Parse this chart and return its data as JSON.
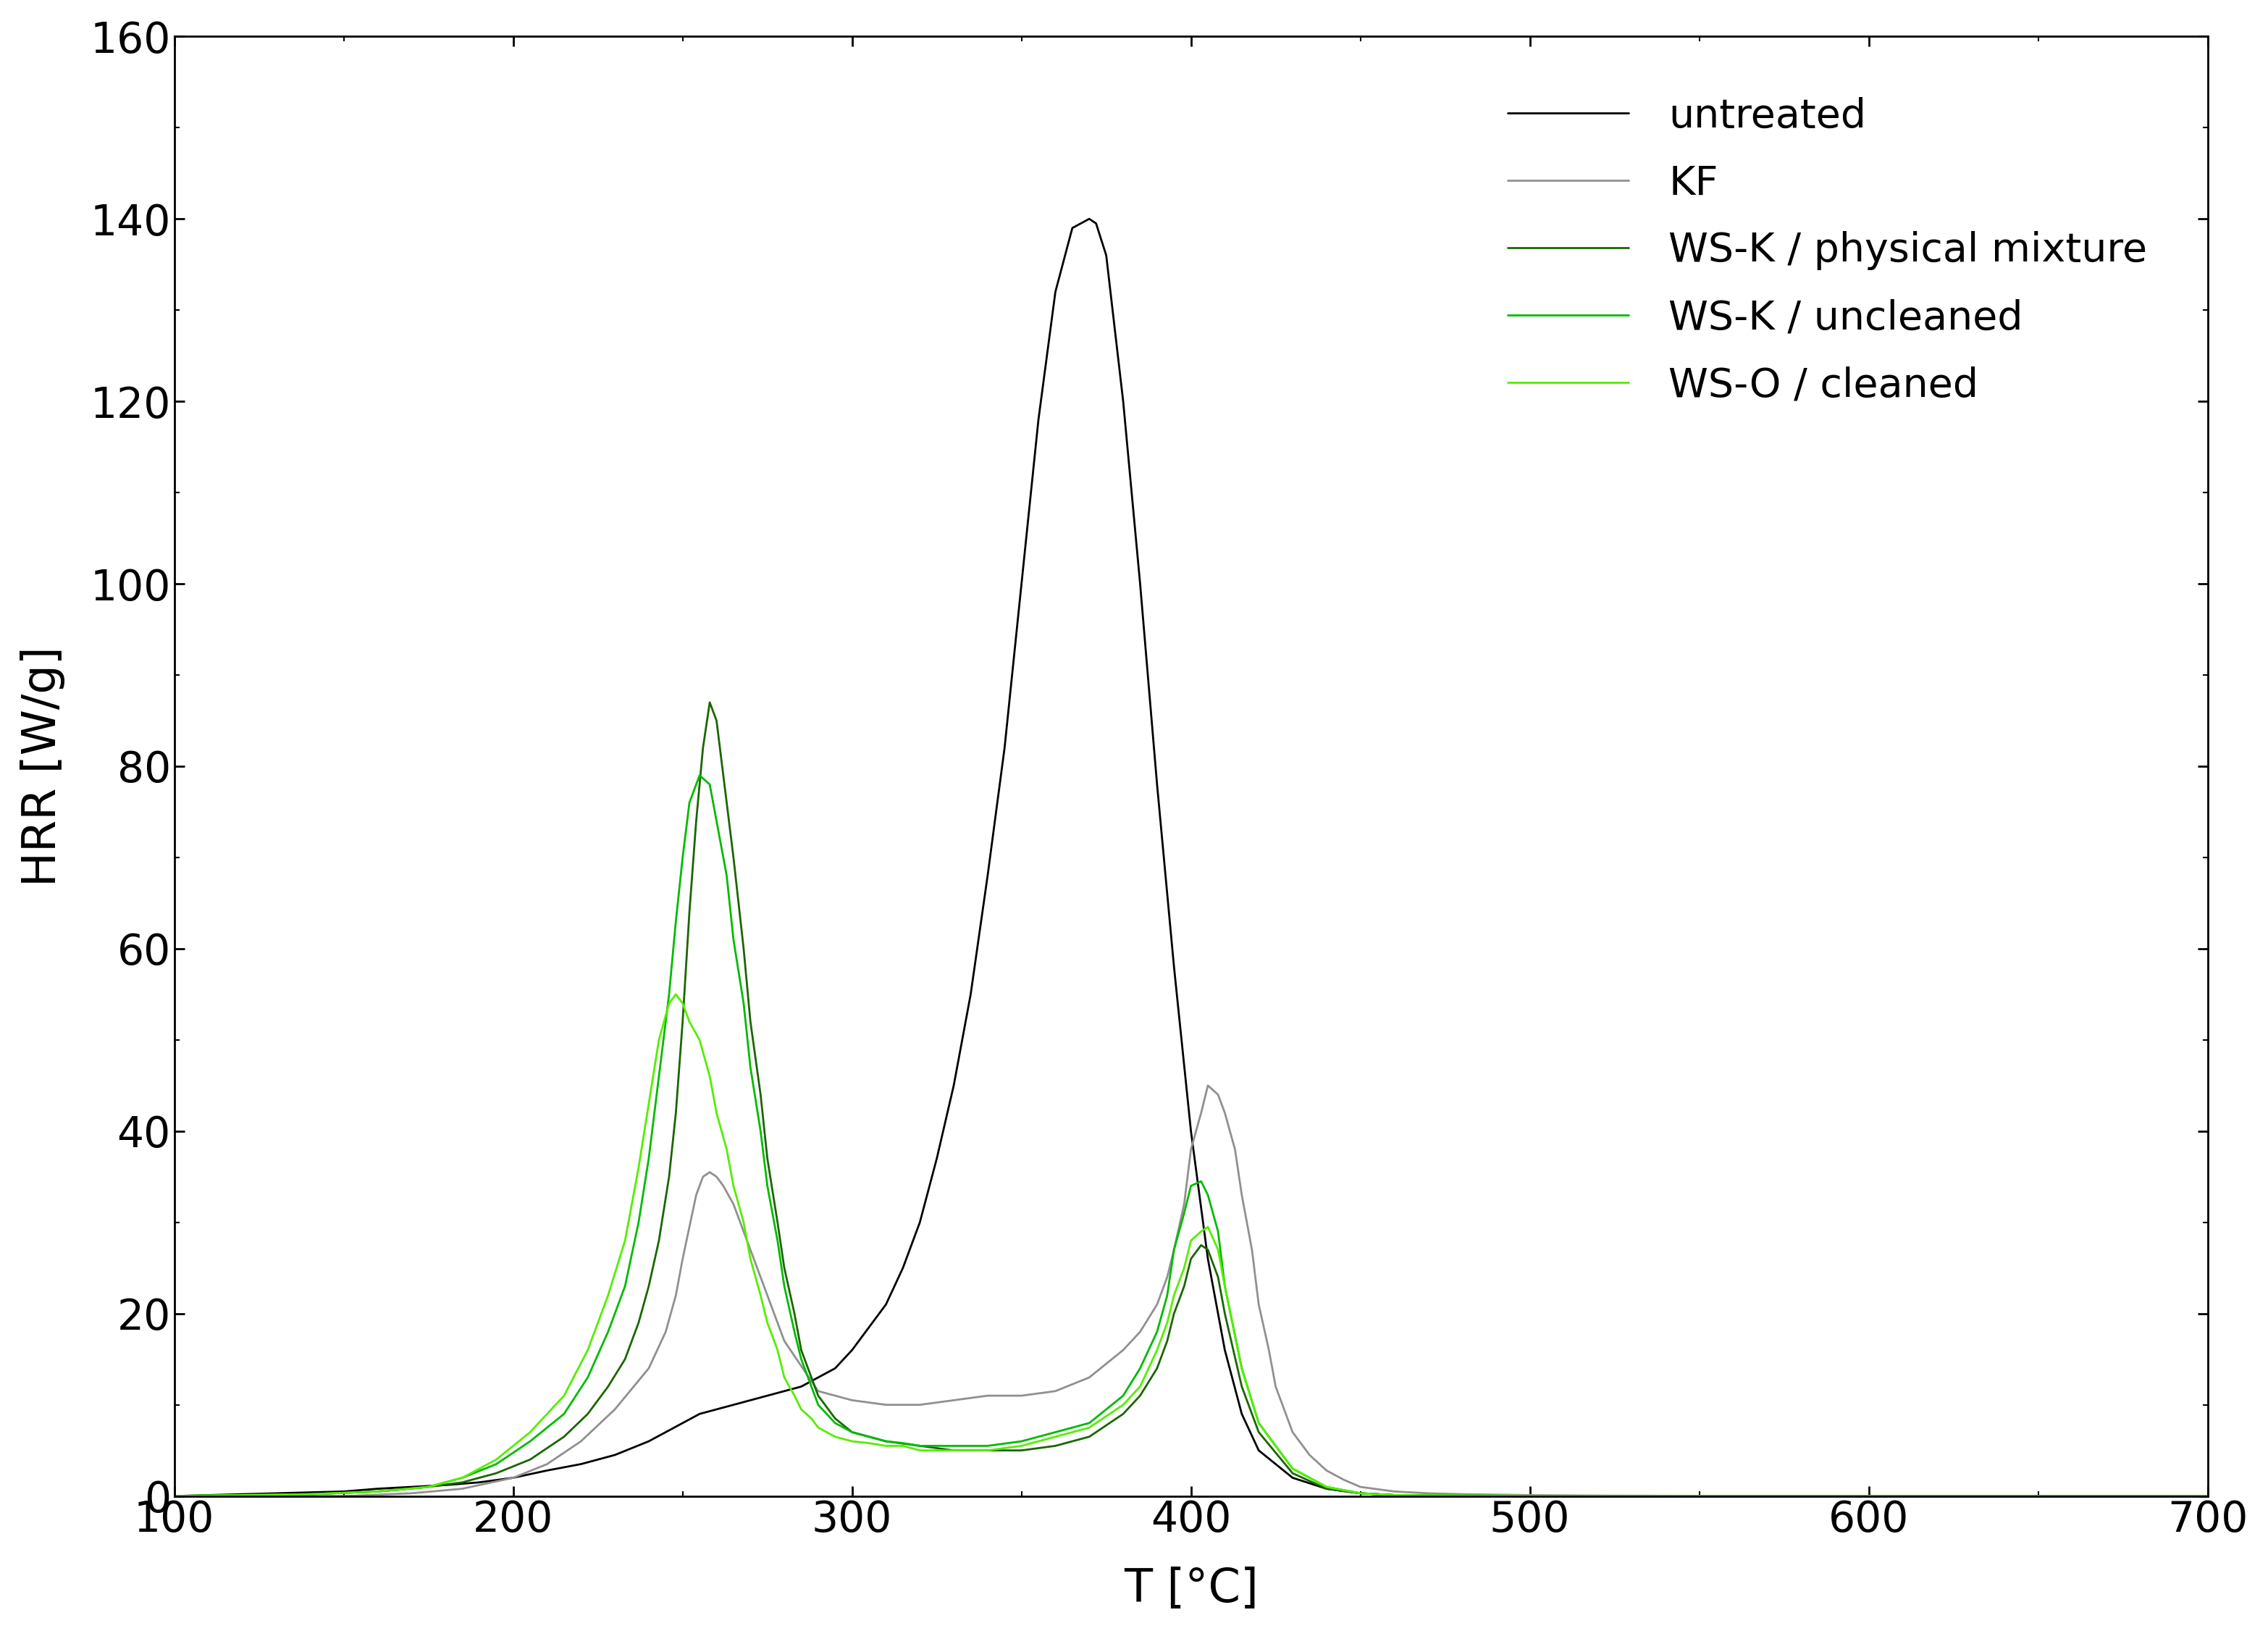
{
  "title": "",
  "xlabel": "T [°C]",
  "ylabel": "HRR [W/g]",
  "xlim": [
    100,
    700
  ],
  "ylim": [
    0,
    160
  ],
  "xticks": [
    100,
    200,
    300,
    400,
    500,
    600,
    700
  ],
  "yticks": [
    0,
    20,
    40,
    60,
    80,
    100,
    120,
    140,
    160
  ],
  "background_color": "#ffffff",
  "legend_labels": [
    "untreated",
    "KF",
    "WS-K / physical mixture",
    "WS-K / uncleaned",
    "WS-O / cleaned"
  ],
  "curves": {
    "untreated": {
      "color": "#000000",
      "linewidth": 2.0,
      "x": [
        100,
        130,
        150,
        160,
        170,
        180,
        190,
        200,
        210,
        220,
        230,
        240,
        245,
        250,
        255,
        260,
        265,
        270,
        275,
        280,
        285,
        290,
        295,
        300,
        305,
        310,
        315,
        320,
        325,
        330,
        335,
        340,
        345,
        350,
        355,
        360,
        365,
        370,
        372,
        375,
        380,
        385,
        390,
        395,
        400,
        405,
        410,
        415,
        420,
        430,
        440,
        450,
        460,
        480,
        500,
        550,
        600,
        650,
        700
      ],
      "y": [
        0,
        0.3,
        0.5,
        0.8,
        1.0,
        1.2,
        1.5,
        2.0,
        2.8,
        3.5,
        4.5,
        6.0,
        7.0,
        8.0,
        9.0,
        9.5,
        10.0,
        10.5,
        11.0,
        11.5,
        12.0,
        13.0,
        14.0,
        16.0,
        18.5,
        21.0,
        25.0,
        30.0,
        37.0,
        45.0,
        55.0,
        68.0,
        82.0,
        100.0,
        118.0,
        132.0,
        139.0,
        140.0,
        139.5,
        136.0,
        120.0,
        100.0,
        78.0,
        58.0,
        40.0,
        26.0,
        16.0,
        9.0,
        5.0,
        2.0,
        0.8,
        0.3,
        0.1,
        0.05,
        0.02,
        0.01,
        0.01,
        0.0,
        0.0
      ]
    },
    "KF": {
      "color": "#909090",
      "linewidth": 2.0,
      "x": [
        100,
        150,
        170,
        185,
        200,
        210,
        220,
        230,
        240,
        245,
        248,
        250,
        252,
        254,
        256,
        258,
        260,
        262,
        265,
        268,
        270,
        275,
        280,
        290,
        300,
        310,
        320,
        330,
        340,
        350,
        360,
        370,
        380,
        385,
        390,
        393,
        395,
        398,
        400,
        403,
        405,
        408,
        410,
        413,
        415,
        418,
        420,
        423,
        425,
        430,
        435,
        440,
        445,
        450,
        460,
        470,
        480,
        490,
        500,
        520,
        550,
        600,
        650,
        700
      ],
      "y": [
        0,
        0.0,
        0.3,
        0.8,
        2.0,
        3.5,
        6.0,
        9.5,
        14.0,
        18.0,
        22.0,
        26.0,
        29.5,
        33.0,
        35.0,
        35.5,
        35.0,
        34.0,
        32.0,
        29.0,
        27.0,
        22.0,
        17.0,
        11.5,
        10.5,
        10.0,
        10.0,
        10.5,
        11.0,
        11.0,
        11.5,
        13.0,
        16.0,
        18.0,
        21.0,
        24.0,
        27.0,
        32.0,
        38.0,
        42.0,
        45.0,
        44.0,
        42.0,
        38.0,
        33.0,
        27.0,
        21.0,
        16.0,
        12.0,
        7.0,
        4.5,
        2.8,
        1.8,
        1.0,
        0.5,
        0.3,
        0.2,
        0.15,
        0.1,
        0.05,
        0.02,
        0.01,
        0.0,
        0.0
      ]
    },
    "WS-K_physical": {
      "color": "#1a6600",
      "linewidth": 2.0,
      "x": [
        100,
        140,
        160,
        175,
        185,
        195,
        205,
        215,
        222,
        228,
        233,
        237,
        240,
        243,
        246,
        248,
        250,
        252,
        254,
        256,
        258,
        260,
        262,
        265,
        268,
        270,
        273,
        275,
        278,
        280,
        283,
        285,
        288,
        290,
        295,
        300,
        305,
        310,
        320,
        330,
        340,
        350,
        360,
        370,
        380,
        385,
        390,
        393,
        395,
        398,
        400,
        403,
        405,
        408,
        410,
        415,
        420,
        430,
        440,
        450,
        460,
        480,
        500,
        550,
        600,
        700
      ],
      "y": [
        0,
        0.2,
        0.5,
        1.0,
        1.5,
        2.5,
        4.0,
        6.5,
        9.0,
        12.0,
        15.0,
        19.0,
        23.0,
        28.0,
        35.0,
        42.0,
        52.0,
        64.0,
        74.0,
        82.0,
        87.0,
        85.0,
        79.0,
        70.0,
        60.0,
        52.0,
        44.0,
        37.0,
        30.0,
        25.0,
        20.0,
        16.0,
        13.0,
        11.0,
        8.5,
        7.0,
        6.5,
        6.0,
        5.5,
        5.0,
        5.0,
        5.0,
        5.5,
        6.5,
        9.0,
        11.0,
        14.0,
        17.0,
        20.0,
        23.0,
        26.0,
        27.5,
        27.0,
        24.0,
        20.0,
        12.0,
        7.0,
        2.5,
        0.8,
        0.3,
        0.1,
        0.05,
        0.01,
        0.0,
        0.0,
        0.0
      ]
    },
    "WS-K_uncleaned": {
      "color": "#00bb00",
      "linewidth": 2.0,
      "x": [
        100,
        140,
        160,
        175,
        185,
        195,
        205,
        215,
        222,
        228,
        233,
        237,
        240,
        243,
        246,
        248,
        250,
        252,
        255,
        258,
        260,
        263,
        265,
        268,
        270,
        273,
        275,
        278,
        280,
        283,
        285,
        288,
        290,
        295,
        300,
        305,
        310,
        315,
        320,
        330,
        340,
        350,
        360,
        370,
        380,
        385,
        390,
        393,
        395,
        398,
        400,
        403,
        405,
        408,
        410,
        415,
        420,
        430,
        440,
        450,
        460,
        480,
        500,
        550,
        600,
        700
      ],
      "y": [
        0,
        0.2,
        0.5,
        1.0,
        2.0,
        3.5,
        6.0,
        9.0,
        13.0,
        18.0,
        23.0,
        30.0,
        37.0,
        46.0,
        55.0,
        63.0,
        70.0,
        76.0,
        79.0,
        78.0,
        74.0,
        68.0,
        61.0,
        54.0,
        47.0,
        40.0,
        34.0,
        28.0,
        23.0,
        18.0,
        15.0,
        12.0,
        10.0,
        8.0,
        7.0,
        6.5,
        6.0,
        5.8,
        5.5,
        5.5,
        5.5,
        6.0,
        7.0,
        8.0,
        11.0,
        14.0,
        18.0,
        22.0,
        27.0,
        31.0,
        34.0,
        34.5,
        33.0,
        29.0,
        23.0,
        14.0,
        8.0,
        3.0,
        1.0,
        0.3,
        0.1,
        0.05,
        0.01,
        0.0,
        0.0,
        0.0
      ]
    },
    "WS-O_cleaned": {
      "color": "#55ee00",
      "linewidth": 2.0,
      "x": [
        100,
        140,
        160,
        175,
        185,
        195,
        205,
        215,
        222,
        228,
        233,
        237,
        240,
        243,
        246,
        248,
        250,
        252,
        255,
        258,
        260,
        263,
        265,
        268,
        270,
        273,
        275,
        278,
        280,
        283,
        285,
        288,
        290,
        295,
        300,
        305,
        310,
        315,
        320,
        330,
        340,
        350,
        360,
        370,
        380,
        385,
        390,
        393,
        395,
        398,
        400,
        403,
        405,
        408,
        410,
        415,
        420,
        430,
        440,
        450,
        460,
        480,
        500,
        550,
        600,
        700
      ],
      "y": [
        0,
        0.2,
        0.5,
        1.0,
        2.0,
        4.0,
        7.0,
        11.0,
        16.0,
        22.0,
        28.0,
        36.0,
        43.0,
        50.0,
        54.0,
        55.0,
        54.0,
        52.0,
        50.0,
        46.0,
        42.0,
        38.0,
        34.0,
        30.0,
        26.0,
        22.0,
        19.0,
        16.0,
        13.0,
        11.0,
        9.5,
        8.5,
        7.5,
        6.5,
        6.0,
        5.8,
        5.5,
        5.5,
        5.0,
        5.0,
        5.0,
        5.5,
        6.5,
        7.5,
        10.0,
        12.0,
        16.0,
        19.0,
        22.0,
        25.0,
        28.0,
        29.0,
        29.5,
        27.0,
        23.0,
        14.0,
        8.0,
        3.0,
        1.0,
        0.3,
        0.1,
        0.05,
        0.01,
        0.0,
        0.0,
        0.0
      ]
    }
  }
}
